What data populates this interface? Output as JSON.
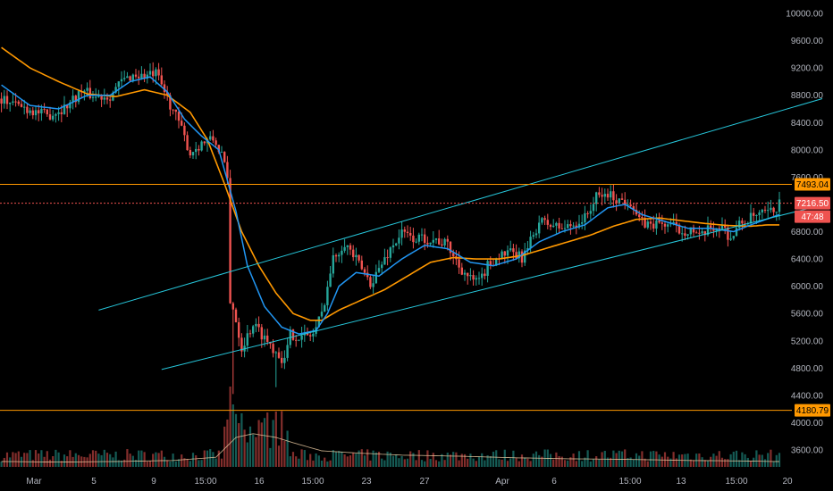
{
  "colors": {
    "background": "#000000",
    "up": "#26a69a",
    "down": "#ef5350",
    "ema_fast": "#2196f3",
    "ema_slow": "#ff9800",
    "channel": "#26c6da",
    "level": "#ff9800",
    "axis_text": "#b2b5be"
  },
  "axes": {
    "y_ticks": [
      "10000.00",
      "9600.00",
      "9200.00",
      "8800.00",
      "8400.00",
      "8000.00",
      "7600.00",
      "6800.00",
      "6400.00",
      "6000.00",
      "5600.00",
      "5200.00",
      "4800.00",
      "4400.00",
      "4000.00",
      "3600.00"
    ],
    "x_ticks": [
      "Mar",
      "5",
      "9",
      "15:00",
      "16",
      "15:00",
      "23",
      "27",
      "Apr",
      "6",
      "15:00",
      "13",
      "15:00",
      "20"
    ]
  },
  "badges": {
    "level_high": "7493.04",
    "price": "7216.50",
    "countdown": "47:48",
    "level_low": "4180.79"
  },
  "chart_data": {
    "type": "candlestick",
    "title": "",
    "xlabel": "",
    "ylabel": "",
    "ylim": [
      3400,
      10200
    ],
    "log_scale": false,
    "grid": false,
    "price_anchors": [
      [
        0,
        8750
      ],
      [
        8,
        8620
      ],
      [
        16,
        8500
      ],
      [
        22,
        8620
      ],
      [
        28,
        8860
      ],
      [
        33,
        8780
      ],
      [
        38,
        8800
      ],
      [
        42,
        9000
      ],
      [
        46,
        9100
      ],
      [
        50,
        9080
      ],
      [
        54,
        9110
      ],
      [
        57,
        8850
      ],
      [
        62,
        8400
      ],
      [
        66,
        7950
      ],
      [
        70,
        8100
      ],
      [
        74,
        8150
      ],
      [
        77,
        7950
      ],
      [
        79,
        7550
      ],
      [
        81,
        5700
      ],
      [
        84,
        5100
      ],
      [
        88,
        5450
      ],
      [
        93,
        5200
      ],
      [
        96,
        5050
      ],
      [
        99,
        4900
      ],
      [
        101,
        5300
      ],
      [
        105,
        5250
      ],
      [
        109,
        5300
      ],
      [
        112,
        5600
      ],
      [
        116,
        6400
      ],
      [
        120,
        6650
      ],
      [
        123,
        6450
      ],
      [
        126,
        6250
      ],
      [
        129,
        6050
      ],
      [
        132,
        6250
      ],
      [
        136,
        6550
      ],
      [
        140,
        6780
      ],
      [
        144,
        6700
      ],
      [
        148,
        6700
      ],
      [
        152,
        6680
      ],
      [
        156,
        6600
      ],
      [
        160,
        6300
      ],
      [
        164,
        6100
      ],
      [
        167,
        6050
      ],
      [
        170,
        6300
      ],
      [
        174,
        6450
      ],
      [
        178,
        6480
      ],
      [
        182,
        6420
      ],
      [
        184,
        6550
      ],
      [
        188,
        6950
      ],
      [
        192,
        6900
      ],
      [
        196,
        6850
      ],
      [
        200,
        6900
      ],
      [
        204,
        7000
      ],
      [
        208,
        7300
      ],
      [
        212,
        7350
      ],
      [
        216,
        7260
      ],
      [
        220,
        7250
      ],
      [
        223,
        6950
      ],
      [
        226,
        6900
      ],
      [
        230,
        6920
      ],
      [
        234,
        6900
      ],
      [
        238,
        6800
      ],
      [
        241,
        6850
      ],
      [
        244,
        6700
      ],
      [
        248,
        6850
      ],
      [
        252,
        6880
      ],
      [
        255,
        6700
      ],
      [
        258,
        6900
      ],
      [
        262,
        7000
      ],
      [
        266,
        7050
      ],
      [
        270,
        7100
      ],
      [
        272,
        7216.5
      ]
    ],
    "ema_fast": [
      [
        0,
        8950
      ],
      [
        10,
        8650
      ],
      [
        20,
        8600
      ],
      [
        30,
        8800
      ],
      [
        38,
        8800
      ],
      [
        45,
        9000
      ],
      [
        52,
        9070
      ],
      [
        58,
        8850
      ],
      [
        64,
        8450
      ],
      [
        70,
        8200
      ],
      [
        76,
        8000
      ],
      [
        82,
        7100
      ],
      [
        86,
        6300
      ],
      [
        92,
        5700
      ],
      [
        98,
        5400
      ],
      [
        104,
        5300
      ],
      [
        110,
        5350
      ],
      [
        114,
        5600
      ],
      [
        118,
        6000
      ],
      [
        124,
        6200
      ],
      [
        132,
        6150
      ],
      [
        140,
        6400
      ],
      [
        148,
        6600
      ],
      [
        156,
        6550
      ],
      [
        164,
        6350
      ],
      [
        172,
        6300
      ],
      [
        180,
        6400
      ],
      [
        188,
        6650
      ],
      [
        196,
        6800
      ],
      [
        204,
        6900
      ],
      [
        212,
        7150
      ],
      [
        218,
        7200
      ],
      [
        224,
        7050
      ],
      [
        232,
        6950
      ],
      [
        240,
        6850
      ],
      [
        248,
        6850
      ],
      [
        256,
        6800
      ],
      [
        262,
        6900
      ],
      [
        272,
        7050
      ]
    ],
    "ema_slow": [
      [
        0,
        9500
      ],
      [
        10,
        9200
      ],
      [
        20,
        9000
      ],
      [
        30,
        8820
      ],
      [
        40,
        8780
      ],
      [
        50,
        8880
      ],
      [
        58,
        8800
      ],
      [
        66,
        8550
      ],
      [
        72,
        8150
      ],
      [
        78,
        7500
      ],
      [
        84,
        6800
      ],
      [
        90,
        6300
      ],
      [
        96,
        5900
      ],
      [
        102,
        5600
      ],
      [
        108,
        5500
      ],
      [
        112,
        5500
      ],
      [
        118,
        5650
      ],
      [
        126,
        5800
      ],
      [
        134,
        5950
      ],
      [
        142,
        6150
      ],
      [
        150,
        6350
      ],
      [
        158,
        6420
      ],
      [
        166,
        6400
      ],
      [
        174,
        6400
      ],
      [
        182,
        6450
      ],
      [
        190,
        6550
      ],
      [
        198,
        6650
      ],
      [
        206,
        6750
      ],
      [
        214,
        6880
      ],
      [
        222,
        6980
      ],
      [
        230,
        7000
      ],
      [
        238,
        6960
      ],
      [
        246,
        6920
      ],
      [
        254,
        6890
      ],
      [
        262,
        6880
      ],
      [
        268,
        6900
      ],
      [
        272,
        6900
      ]
    ],
    "channel_upper": [
      [
        34,
        5650
      ],
      [
        287,
        8750
      ]
    ],
    "channel_lower": [
      [
        56,
        4780
      ],
      [
        287,
        7190
      ]
    ],
    "levels": [
      7493.04,
      7216.5,
      4180.79
    ],
    "volume_ema": [
      [
        0,
        0.1
      ],
      [
        20,
        0.09
      ],
      [
        40,
        0.1
      ],
      [
        60,
        0.12
      ],
      [
        75,
        0.18
      ],
      [
        82,
        0.55
      ],
      [
        88,
        0.62
      ],
      [
        96,
        0.55
      ],
      [
        104,
        0.42
      ],
      [
        112,
        0.3
      ],
      [
        124,
        0.26
      ],
      [
        140,
        0.22
      ],
      [
        160,
        0.2
      ],
      [
        180,
        0.17
      ],
      [
        200,
        0.15
      ],
      [
        220,
        0.14
      ],
      [
        240,
        0.12
      ],
      [
        260,
        0.11
      ],
      [
        272,
        0.1
      ]
    ],
    "bar_count": 273
  }
}
